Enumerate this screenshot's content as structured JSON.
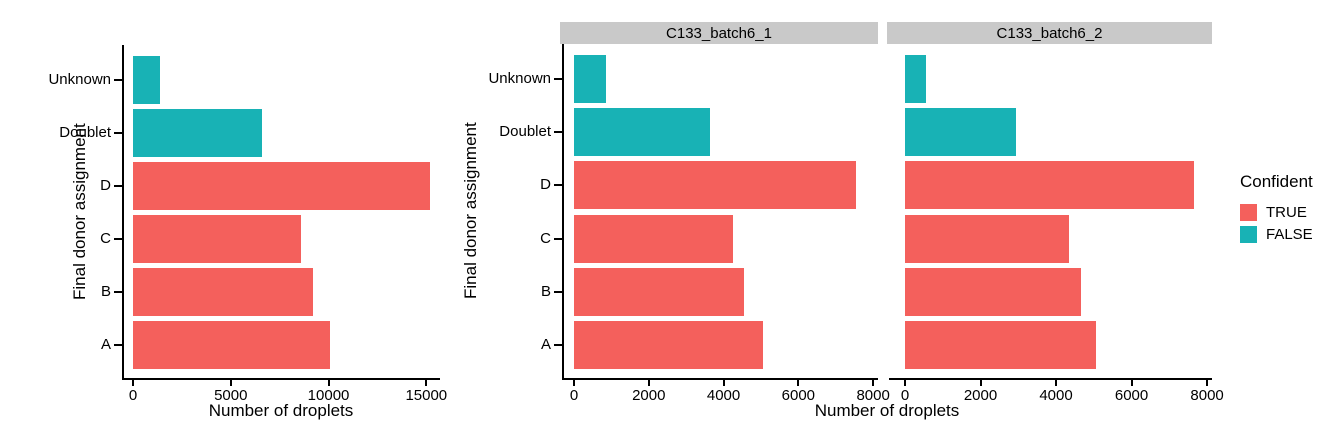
{
  "figure": {
    "background": "#FFFFFF",
    "axis_color": "#000000",
    "text_color": "#000000",
    "strip_background": "#C9C9C9"
  },
  "legend": {
    "title": "Confident",
    "position": "right",
    "items": [
      {
        "label": "TRUE",
        "color": "#F4605C"
      },
      {
        "label": "FALSE",
        "color": "#18B2B5"
      }
    ]
  },
  "chart_data": [
    {
      "type": "bar",
      "orientation": "horizontal",
      "title": "",
      "xlabel": "Number of droplets",
      "ylabel": "Final donor assignment",
      "grid": false,
      "categories_top_to_bottom": [
        "Unknown",
        "Doublet",
        "D",
        "C",
        "B",
        "A"
      ],
      "category_series": [
        "FALSE",
        "FALSE",
        "TRUE",
        "TRUE",
        "TRUE",
        "TRUE"
      ],
      "panels": [
        {
          "label": "",
          "values": [
            1400,
            6600,
            15200,
            8600,
            9200,
            10100
          ],
          "xlim": [
            0,
            15700
          ],
          "ticks": [
            0,
            5000,
            10000,
            15000
          ]
        }
      ]
    },
    {
      "type": "bar",
      "orientation": "horizontal",
      "title": "",
      "xlabel": "Number of droplets",
      "ylabel": "Final donor assignment",
      "grid": false,
      "categories_top_to_bottom": [
        "Unknown",
        "Doublet",
        "D",
        "C",
        "B",
        "A"
      ],
      "category_series": [
        "FALSE",
        "FALSE",
        "TRUE",
        "TRUE",
        "TRUE",
        "TRUE"
      ],
      "panels": [
        {
          "label": "C133_batch6_1",
          "values": [
            850,
            3650,
            7550,
            4250,
            4550,
            5050
          ],
          "xlim": [
            0,
            8130
          ],
          "ticks": [
            0,
            2000,
            4000,
            6000,
            8000
          ]
        },
        {
          "label": "C133_batch6_2",
          "values": [
            550,
            2950,
            7650,
            4350,
            4650,
            5050
          ],
          "xlim": [
            0,
            8130
          ],
          "ticks": [
            0,
            2000,
            4000,
            6000,
            8000
          ]
        }
      ]
    }
  ]
}
